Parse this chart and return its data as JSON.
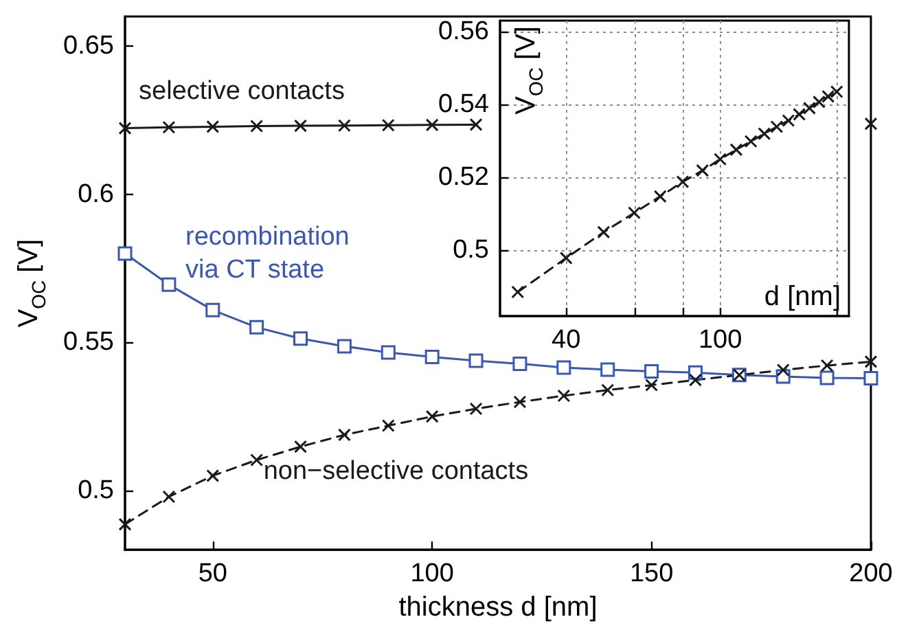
{
  "chart_data": [
    {
      "type": "line",
      "xlabel": "thickness d [nm]",
      "ylabel": "V$_{OC}$ [V]",
      "x": [
        30,
        40,
        50,
        60,
        70,
        80,
        90,
        100,
        110,
        120,
        130,
        140,
        150,
        160,
        170,
        180,
        190,
        200
      ],
      "xlim": [
        30,
        200
      ],
      "xticks": [
        50,
        100,
        150,
        200
      ],
      "ylim": [
        0.48,
        0.66
      ],
      "yticks": [
        0.5,
        0.55,
        0.6,
        0.65
      ],
      "grid": false,
      "legend": false,
      "series": [
        {
          "name": "selective contacts",
          "color": "#1a1a1a",
          "marker": "cross",
          "line_style": "solid",
          "values": [
            0.6223,
            0.6226,
            0.6228,
            0.623,
            0.6231,
            0.6232,
            0.6233,
            0.6234,
            0.6235,
            null,
            null,
            null,
            null,
            null,
            null,
            null,
            null,
            0.6238
          ]
        },
        {
          "name": "recombination\nvia CT state",
          "color": "#3a58b0",
          "marker": "square",
          "line_style": "solid",
          "values": [
            0.58,
            0.5695,
            0.5609,
            0.5551,
            0.5513,
            0.5487,
            0.5466,
            0.5451,
            0.5438,
            0.5428,
            0.5415,
            0.5408,
            0.5402,
            0.5398,
            0.539,
            0.5385,
            0.538,
            0.5379
          ]
        },
        {
          "name": "non−selective contacts",
          "color": "#1a1a1a",
          "marker": "cross",
          "line_style": "dashed",
          "values": [
            0.4886,
            0.4979,
            0.505,
            0.5103,
            0.5148,
            0.5188,
            0.5219,
            0.525,
            0.5276,
            0.5299,
            0.532,
            0.5339,
            0.5356,
            0.5373,
            0.539,
            0.5407,
            0.5422,
            0.5435
          ]
        }
      ]
    },
    {
      "type": "line",
      "xlabel": "d [nm]",
      "ylabel": "V$_{OC}$ [V]",
      "log": "x",
      "x": [
        30,
        40,
        50,
        60,
        70,
        80,
        90,
        100,
        110,
        120,
        130,
        140,
        150,
        160,
        170,
        180,
        190,
        200
      ],
      "xlim": [
        27,
        215
      ],
      "xticks": [
        40,
        {
          "value": 60,
          "label": null
        },
        {
          "value": 80,
          "label": null
        },
        100,
        {
          "value": 200,
          "label": null
        }
      ],
      "ylim": [
        0.482,
        0.563
      ],
      "yticks": [
        0.5,
        0.52,
        0.54,
        0.56
      ],
      "grid": true,
      "legend": false,
      "series": [
        {
          "color": "#1a1a1a",
          "marker": "cross",
          "line_style": "dashed",
          "values": [
            0.4886,
            0.4979,
            0.505,
            0.5103,
            0.5148,
            0.5188,
            0.5219,
            0.525,
            0.5276,
            0.5299,
            0.532,
            0.5339,
            0.5356,
            0.5373,
            0.539,
            0.5407,
            0.5422,
            0.5435
          ]
        }
      ]
    }
  ]
}
